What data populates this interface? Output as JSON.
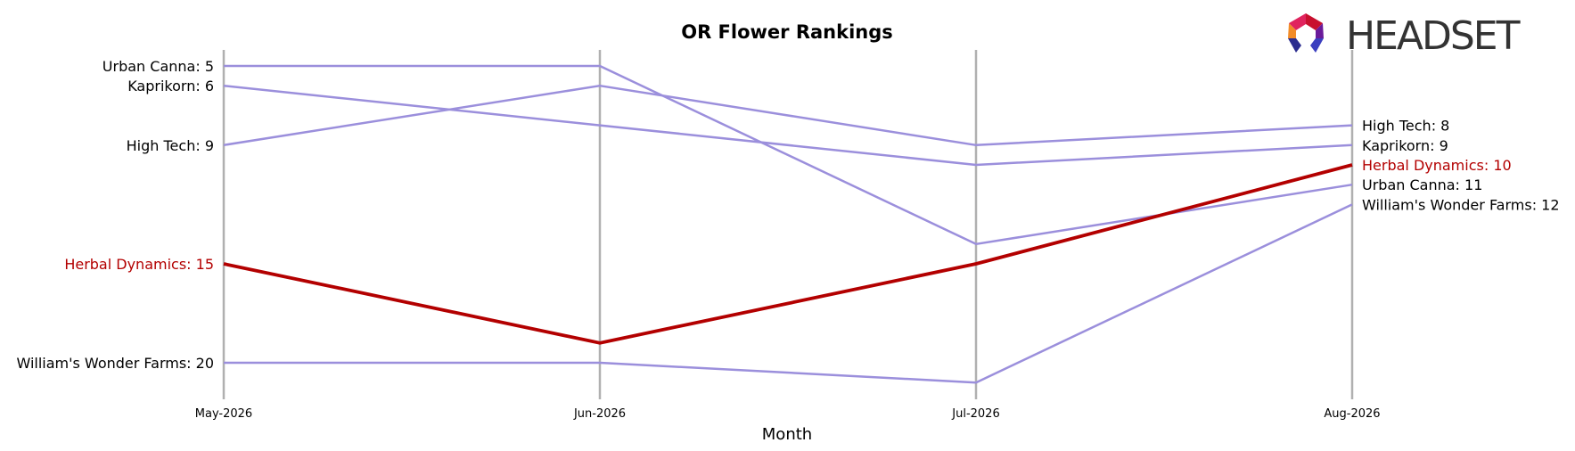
{
  "chart_data": {
    "type": "line",
    "title": "OR Flower Rankings",
    "xlabel": "Month",
    "ylabel": "",
    "x": [
      "May-2026",
      "Jun-2026",
      "Jul-2026",
      "Aug-2026"
    ],
    "ylim": [
      4,
      21.5
    ],
    "y_inverted": true,
    "grid": false,
    "series": [
      {
        "name": "Urban Canna",
        "values": [
          5,
          5,
          14,
          11
        ],
        "color": "#9b8fdc",
        "highlight": false
      },
      {
        "name": "Kaprikorn",
        "values": [
          6,
          8,
          10,
          9
        ],
        "color": "#9b8fdc",
        "highlight": false
      },
      {
        "name": "High Tech",
        "values": [
          9,
          6,
          9,
          8
        ],
        "color": "#9b8fdc",
        "highlight": false
      },
      {
        "name": "Herbal Dynamics",
        "values": [
          15,
          19,
          15,
          10
        ],
        "color": "#b30000",
        "highlight": true
      },
      {
        "name": "William's Wonder Farms",
        "values": [
          20,
          20,
          21,
          12
        ],
        "color": "#9b8fdc",
        "highlight": false
      }
    ],
    "left_labels": [
      {
        "text": "Urban Canna: 5",
        "series": 0
      },
      {
        "text": "Kaprikorn: 6",
        "series": 1
      },
      {
        "text": "High Tech: 9",
        "series": 2
      },
      {
        "text": "Herbal Dynamics: 15",
        "series": 3
      },
      {
        "text": "William's Wonder Farms: 20",
        "series": 4
      }
    ],
    "right_labels": [
      {
        "text": "High Tech: 8",
        "series": 2
      },
      {
        "text": "Kaprikorn: 9",
        "series": 1
      },
      {
        "text": "Herbal Dynamics: 10",
        "series": 3
      },
      {
        "text": "Urban Canna: 11",
        "series": 0
      },
      {
        "text": "William's Wonder Farms: 12",
        "series": 4
      }
    ],
    "colors": {
      "normal": "#9b8fdc",
      "highlight": "#b30000",
      "axis": "#b0b0b0"
    }
  },
  "logo": {
    "text": "HEADSET",
    "colors": [
      "#c8102e",
      "#f28c28",
      "#2b2d8f",
      "#6a1b9a"
    ]
  }
}
